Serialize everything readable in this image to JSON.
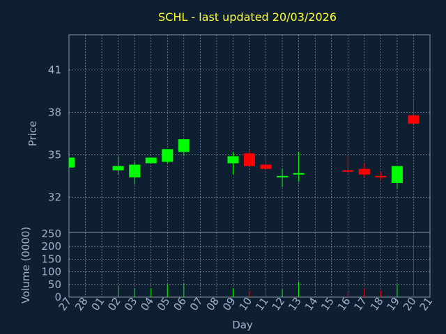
{
  "chart_data": {
    "type": "candlestick",
    "title": "SCHL - last updated 20/03/2026",
    "xlabel": "Day",
    "price_panel": {
      "ylabel": "Price",
      "ylim": [
        29.5,
        43.5
      ],
      "yticks": [
        32,
        35,
        38,
        41
      ]
    },
    "volume_panel": {
      "ylabel": "Volume (0000)",
      "ylim": [
        0,
        250
      ],
      "yticks": [
        0,
        50,
        100,
        150,
        200,
        250
      ]
    },
    "x_tick_labels": [
      "27",
      "28",
      "01",
      "02",
      "03",
      "04",
      "05",
      "06",
      "07",
      "08",
      "09",
      "10",
      "11",
      "12",
      "13",
      "14",
      "15",
      "16",
      "17",
      "18",
      "19",
      "20",
      "21"
    ],
    "candles": [
      {
        "day": "27",
        "open": 34.1,
        "close": 34.8,
        "high": 34.8,
        "low": 34.1,
        "volume": 0
      },
      {
        "day": "02",
        "open": 33.9,
        "close": 34.2,
        "high": 34.9,
        "low": 33.6,
        "volume": 45
      },
      {
        "day": "03",
        "open": 33.4,
        "close": 34.3,
        "high": 34.5,
        "low": 32.9,
        "volume": 35
      },
      {
        "day": "04",
        "open": 34.4,
        "close": 34.8,
        "high": 34.8,
        "low": 34.4,
        "volume": 35
      },
      {
        "day": "05",
        "open": 34.5,
        "close": 35.4,
        "high": 35.4,
        "low": 34.4,
        "volume": 50
      },
      {
        "day": "06",
        "open": 35.2,
        "close": 36.1,
        "high": 36.1,
        "low": 34.9,
        "volume": 55
      },
      {
        "day": "09",
        "open": 34.4,
        "close": 34.9,
        "high": 35.2,
        "low": 33.6,
        "volume": 35
      },
      {
        "day": "10",
        "open": 35.1,
        "close": 34.2,
        "high": 35.3,
        "low": 34.2,
        "volume": 25
      },
      {
        "day": "11",
        "open": 34.3,
        "close": 34.0,
        "high": 34.9,
        "low": 34.0,
        "volume": 30
      },
      {
        "day": "12",
        "open": 33.4,
        "close": 33.5,
        "high": 34.0,
        "low": 32.7,
        "volume": 30
      },
      {
        "day": "13",
        "open": 33.6,
        "close": 33.7,
        "high": 35.2,
        "low": 33.1,
        "volume": 60
      },
      {
        "day": "16",
        "open": 33.9,
        "close": 33.8,
        "high": 35.0,
        "low": 33.6,
        "volume": 20
      },
      {
        "day": "17",
        "open": 34.0,
        "close": 33.6,
        "high": 34.4,
        "low": 33.4,
        "volume": 35
      },
      {
        "day": "18",
        "open": 33.5,
        "close": 33.4,
        "high": 33.8,
        "low": 33.2,
        "volume": 25
      },
      {
        "day": "19",
        "open": 33.0,
        "close": 34.2,
        "high": 34.2,
        "low": 32.6,
        "volume": 50
      },
      {
        "day": "20",
        "open": 37.8,
        "close": 37.2,
        "high": 38.9,
        "low": 37.2,
        "volume": 240
      }
    ],
    "colors": {
      "up": "#00ff00",
      "down": "#ff0000",
      "background": "#0f1f32",
      "grid": "#ffffff",
      "text": "#9fb4cc",
      "title": "#ffff33"
    },
    "grid": true
  }
}
